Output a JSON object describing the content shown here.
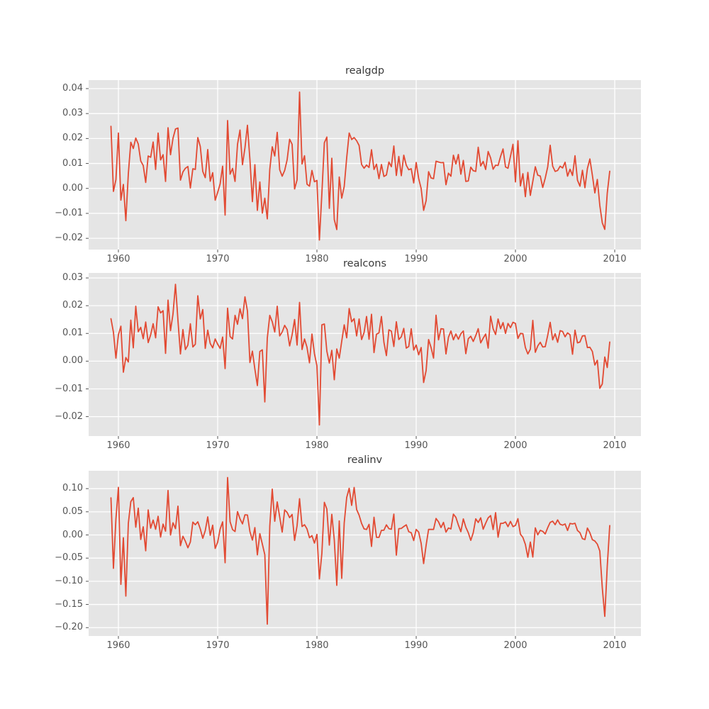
{
  "style": {
    "figure_background": "#ffffff",
    "axes_background": "#e5e5e5",
    "grid_color": "#ffffff",
    "line_color": "#e24a33",
    "tick_text_color": "#555555",
    "title_text_color": "#3a3a3a",
    "tick_mark_color": "#555555"
  },
  "chart_data": [
    {
      "type": "line",
      "title": "realgdp",
      "x_start": 1959.25,
      "x_step": 0.25,
      "xlim": [
        1957.0,
        2012.64
      ],
      "ylim": [
        -0.0245,
        0.0434
      ],
      "x_ticks": [
        1960,
        1970,
        1980,
        1990,
        2000,
        2010
      ],
      "y_ticks": [
        -0.02,
        -0.01,
        0.0,
        0.01,
        0.02,
        0.03,
        0.04
      ],
      "grid": true,
      "legend": "none",
      "values": [
        0.0249,
        -0.0012,
        0.0035,
        0.0222,
        -0.0047,
        0.0016,
        -0.0129,
        0.0059,
        0.0185,
        0.016,
        0.0202,
        0.0178,
        0.011,
        0.0092,
        0.0024,
        0.013,
        0.0125,
        0.0186,
        0.0076,
        0.0222,
        0.0114,
        0.0135,
        0.0028,
        0.0243,
        0.0135,
        0.0201,
        0.0238,
        0.0242,
        0.0033,
        0.0066,
        0.0081,
        0.0088,
        0.0002,
        0.0079,
        0.0076,
        0.0204,
        0.0168,
        0.0068,
        0.0043,
        0.0156,
        0.0029,
        0.0063,
        -0.0047,
        -0.0016,
        0.0018,
        0.0089,
        -0.0107,
        0.0272,
        0.0057,
        0.008,
        0.0028,
        0.0177,
        0.0234,
        0.0095,
        0.0163,
        0.0253,
        0.0115,
        -0.0053,
        0.0095,
        -0.0088,
        0.0026,
        -0.0099,
        -0.0039,
        -0.0122,
        0.0076,
        0.0167,
        0.013,
        0.0225,
        0.0075,
        0.0049,
        0.0072,
        0.0115,
        0.0197,
        0.0177,
        -0.0002,
        0.0034,
        0.0386,
        0.0098,
        0.0131,
        0.0017,
        0.0009,
        0.0072,
        0.0027,
        0.0032,
        -0.0207,
        -0.0019,
        0.0183,
        0.0206,
        -0.008,
        0.0121,
        -0.0125,
        -0.0165,
        0.0046,
        -0.0039,
        0.0008,
        0.0123,
        0.0222,
        0.0196,
        0.0204,
        0.0191,
        0.0172,
        0.0096,
        0.0081,
        0.0094,
        0.0084,
        0.0155,
        0.0076,
        0.0097,
        0.0039,
        0.0096,
        0.0048,
        0.0054,
        0.0106,
        0.0087,
        0.017,
        0.0052,
        0.0128,
        0.0051,
        0.0133,
        0.0093,
        0.0075,
        0.0079,
        0.0022,
        0.0104,
        0.004,
        0.0,
        -0.0088,
        -0.0049,
        0.0067,
        0.0042,
        0.0039,
        0.0109,
        0.0106,
        0.0103,
        0.0104,
        0.0015,
        0.0061,
        0.0049,
        0.0133,
        0.0098,
        0.0136,
        0.0057,
        0.0112,
        0.0028,
        0.003,
        0.0085,
        0.0071,
        0.0068,
        0.0165,
        0.009,
        0.0108,
        0.0076,
        0.0148,
        0.0122,
        0.0077,
        0.0093,
        0.0092,
        0.0128,
        0.0158,
        0.0086,
        0.0081,
        0.0129,
        0.0177,
        0.0026,
        0.0191,
        0.001,
        0.0059,
        -0.0033,
        0.0064,
        -0.0028,
        0.0028,
        0.0087,
        0.0053,
        0.005,
        0.0004,
        0.0041,
        0.0086,
        0.0173,
        0.0089,
        0.0068,
        0.0072,
        0.0089,
        0.0082,
        0.0105,
        0.0049,
        0.0077,
        0.0052,
        0.0131,
        0.0033,
        0.0009,
        0.0073,
        0.0003,
        0.008,
        0.0118,
        0.0053,
        -0.0018,
        0.0036,
        -0.0068,
        -0.0138,
        -0.0164,
        -0.0019,
        0.0069
      ]
    },
    {
      "type": "line",
      "title": "realcons",
      "x_start": 1959.25,
      "x_step": 0.25,
      "xlim": [
        1957.0,
        2012.64
      ],
      "ylim": [
        -0.027,
        0.0318
      ],
      "x_ticks": [
        1960,
        1970,
        1980,
        1990,
        2000,
        2010
      ],
      "y_ticks": [
        -0.02,
        -0.01,
        0.0,
        0.01,
        0.02,
        0.03
      ],
      "grid": true,
      "legend": "none",
      "values": [
        0.0153,
        0.0104,
        0.0011,
        0.0095,
        0.0126,
        -0.004,
        0.0013,
        -0.0003,
        0.0148,
        0.0048,
        0.0198,
        0.0106,
        0.0122,
        0.0081,
        0.0141,
        0.0067,
        0.0095,
        0.0135,
        0.0084,
        0.0196,
        0.0174,
        0.0182,
        0.0028,
        0.022,
        0.011,
        0.017,
        0.0277,
        0.0147,
        0.0026,
        0.0114,
        0.0042,
        0.0058,
        0.0135,
        0.0051,
        0.0061,
        0.0236,
        0.0152,
        0.0186,
        0.0046,
        0.0112,
        0.0064,
        0.0048,
        0.008,
        0.0061,
        0.0046,
        0.0087,
        -0.0027,
        0.0191,
        0.0089,
        0.008,
        0.0165,
        0.0133,
        0.0189,
        0.0153,
        0.0232,
        0.0181,
        -0.0005,
        0.0036,
        -0.0029,
        -0.0088,
        0.0035,
        0.0041,
        -0.0147,
        0.0083,
        0.0165,
        0.0142,
        0.0105,
        0.0198,
        0.0091,
        0.0105,
        0.0129,
        0.0114,
        0.0055,
        0.0095,
        0.015,
        0.0058,
        0.0212,
        0.0042,
        0.008,
        0.005,
        -0.0006,
        0.0098,
        0.0027,
        -0.0017,
        -0.023,
        0.0131,
        0.0134,
        0.0036,
        -0.0007,
        0.0039,
        -0.0067,
        0.0044,
        0.0011,
        0.0072,
        0.0131,
        0.0084,
        0.019,
        0.0142,
        0.0153,
        0.0091,
        0.0152,
        0.0078,
        0.0103,
        0.0161,
        0.0079,
        0.0169,
        0.0031,
        0.0097,
        0.0102,
        0.0161,
        0.0068,
        0.002,
        0.0113,
        0.0108,
        0.0053,
        0.0142,
        0.0078,
        0.0088,
        0.0118,
        0.0047,
        0.0053,
        0.0117,
        0.004,
        0.0058,
        0.0023,
        0.0049,
        -0.0077,
        -0.0034,
        0.0078,
        0.0049,
        0.0011,
        0.0166,
        0.0077,
        0.0117,
        0.0116,
        0.0026,
        0.0086,
        0.0109,
        0.0077,
        0.0098,
        0.0079,
        0.0099,
        0.0109,
        0.0027,
        0.0081,
        0.009,
        0.0071,
        0.0092,
        0.0117,
        0.0066,
        0.0083,
        0.0098,
        0.0047,
        0.0162,
        0.0117,
        0.0096,
        0.0152,
        0.0117,
        0.0139,
        0.01,
        0.0136,
        0.0121,
        0.014,
        0.0136,
        0.0082,
        0.01,
        0.0099,
        0.0049,
        0.0026,
        0.0043,
        0.0147,
        0.0032,
        0.0055,
        0.0068,
        0.0051,
        0.0052,
        0.0093,
        0.014,
        0.0077,
        0.0099,
        0.0068,
        0.011,
        0.0107,
        0.0088,
        0.0102,
        0.0095,
        0.0025,
        0.0112,
        0.0066,
        0.0069,
        0.0091,
        0.0092,
        0.0049,
        0.005,
        0.0035,
        -0.0014,
        0.0003,
        -0.0098,
        -0.0082,
        0.0015,
        -0.0023,
        0.0069
      ]
    },
    {
      "type": "line",
      "title": "realinv",
      "x_start": 1959.25,
      "x_step": 0.25,
      "xlim": [
        1957.0,
        2012.64
      ],
      "ylim": [
        -0.218,
        0.1385
      ],
      "x_ticks": [
        1960,
        1970,
        1980,
        1990,
        2000,
        2010
      ],
      "y_ticks": [
        -0.2,
        -0.15,
        -0.1,
        -0.05,
        0.0,
        0.05,
        0.1
      ],
      "grid": true,
      "legend": "none",
      "values": [
        0.0802,
        -0.0721,
        0.0344,
        0.1027,
        -0.1066,
        -0.006,
        -0.1318,
        0.0252,
        0.0718,
        0.0805,
        0.0167,
        0.0579,
        -0.0097,
        0.0177,
        -0.0341,
        0.054,
        0.0145,
        0.0321,
        0.0122,
        0.0403,
        -0.0046,
        0.0235,
        0.0081,
        0.0959,
        -0.0001,
        0.0262,
        0.0136,
        0.0622,
        -0.0231,
        -0.0028,
        -0.0137,
        -0.0277,
        -0.0151,
        0.0277,
        0.0221,
        0.0285,
        0.0131,
        -0.0071,
        0.0092,
        0.039,
        -0.0008,
        0.021,
        -0.0291,
        -0.0155,
        0.0127,
        0.0282,
        -0.0599,
        0.124,
        0.0285,
        0.0116,
        0.0074,
        0.0503,
        0.0347,
        0.0239,
        0.0435,
        0.0431,
        0.0073,
        -0.011,
        0.016,
        -0.043,
        0.0029,
        -0.0196,
        -0.0426,
        -0.1924,
        0.019,
        0.0989,
        0.0296,
        0.0713,
        0.0387,
        0.0061,
        0.0541,
        0.0486,
        0.0373,
        0.0442,
        -0.0117,
        0.0199,
        0.0782,
        0.0183,
        0.0221,
        0.013,
        -0.0059,
        -0.0015,
        -0.0176,
        0.0013,
        -0.0948,
        -0.0394,
        0.0704,
        0.0559,
        -0.0219,
        0.0445,
        -0.011,
        -0.1087,
        0.0301,
        -0.0936,
        0.026,
        0.081,
        0.1007,
        0.0638,
        0.1025,
        0.055,
        0.0427,
        0.0248,
        0.0131,
        0.0118,
        0.0228,
        -0.0248,
        0.0383,
        -0.005,
        -0.0052,
        0.0099,
        0.0103,
        0.0218,
        0.0136,
        0.0122,
        0.045,
        -0.0436,
        0.0136,
        0.0141,
        0.0182,
        0.0219,
        0.0071,
        0.0049,
        -0.0121,
        0.0119,
        0.0061,
        -0.018,
        -0.0618,
        -0.0223,
        0.0121,
        0.0119,
        0.0119,
        0.0355,
        0.0284,
        0.016,
        0.0271,
        0.0062,
        0.0151,
        0.0131,
        0.0448,
        0.038,
        0.0214,
        0.007,
        0.0346,
        0.0167,
        0.0048,
        -0.0116,
        0.005,
        0.0348,
        0.027,
        0.0371,
        0.0124,
        0.0253,
        0.0369,
        0.0418,
        0.0117,
        0.0483,
        -0.0048,
        0.0249,
        0.0252,
        0.0281,
        0.0179,
        0.0292,
        0.018,
        0.0206,
        0.0351,
        0.0017,
        -0.0053,
        -0.0203,
        -0.0481,
        -0.0153,
        -0.0477,
        0.0153,
        0.0003,
        0.01,
        0.0079,
        0.0022,
        0.0157,
        0.0271,
        0.0297,
        0.0222,
        0.0324,
        0.0231,
        0.0211,
        0.0238,
        0.0097,
        0.025,
        0.0237,
        0.0253,
        0.0097,
        0.0049,
        -0.0081,
        -0.0099,
        0.0148,
        0.0048,
        -0.0102,
        -0.0131,
        -0.0198,
        -0.0347,
        -0.1143,
        -0.1756,
        -0.0675,
        0.0202
      ]
    }
  ]
}
